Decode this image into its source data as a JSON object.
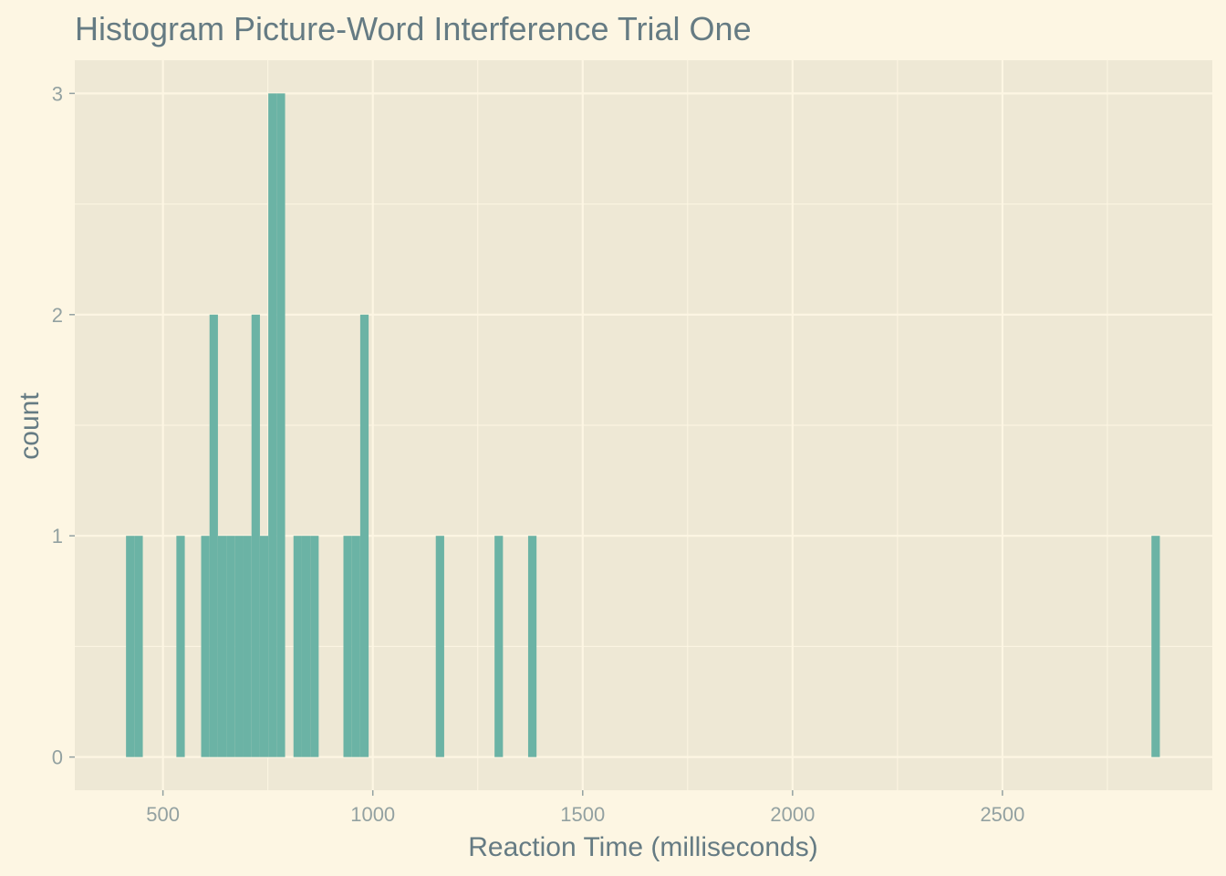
{
  "chart_data": {
    "type": "bar",
    "title": "Histogram Picture-Word Interference Trial One",
    "xlabel": "Reaction Time (milliseconds)",
    "ylabel": "count",
    "xlim": [
      290,
      3000
    ],
    "ylim": [
      -0.15,
      3.15
    ],
    "x_ticks": [
      500,
      1000,
      1500,
      2000,
      2500
    ],
    "x_tick_labels": [
      "500",
      "1000",
      "1500",
      "2000",
      "2500"
    ],
    "y_ticks": [
      0,
      1,
      2,
      3
    ],
    "y_tick_labels": [
      "0",
      "1",
      "2",
      "3"
    ],
    "grid": true,
    "bin_width": 20,
    "bins": [
      {
        "x0": 412,
        "x1": 432,
        "count": 1
      },
      {
        "x0": 432,
        "x1": 452,
        "count": 1
      },
      {
        "x0": 532,
        "x1": 552,
        "count": 1
      },
      {
        "x0": 591,
        "x1": 611,
        "count": 1
      },
      {
        "x0": 611,
        "x1": 631,
        "count": 2
      },
      {
        "x0": 631,
        "x1": 651,
        "count": 1
      },
      {
        "x0": 651,
        "x1": 671,
        "count": 1
      },
      {
        "x0": 671,
        "x1": 691,
        "count": 1
      },
      {
        "x0": 691,
        "x1": 711,
        "count": 1
      },
      {
        "x0": 711,
        "x1": 731,
        "count": 2
      },
      {
        "x0": 731,
        "x1": 751,
        "count": 1
      },
      {
        "x0": 751,
        "x1": 771,
        "count": 3
      },
      {
        "x0": 771,
        "x1": 791,
        "count": 3
      },
      {
        "x0": 811,
        "x1": 831,
        "count": 1
      },
      {
        "x0": 831,
        "x1": 851,
        "count": 1
      },
      {
        "x0": 851,
        "x1": 871,
        "count": 1
      },
      {
        "x0": 930,
        "x1": 950,
        "count": 1
      },
      {
        "x0": 950,
        "x1": 970,
        "count": 1
      },
      {
        "x0": 970,
        "x1": 990,
        "count": 2
      },
      {
        "x0": 1150,
        "x1": 1170,
        "count": 1
      },
      {
        "x0": 1290,
        "x1": 1310,
        "count": 1
      },
      {
        "x0": 1370,
        "x1": 1390,
        "count": 1
      },
      {
        "x0": 2855,
        "x1": 2875,
        "count": 1
      }
    ]
  },
  "colors": {
    "background": "#fdf6e3",
    "panel": "#eee8d5",
    "grid": "#fdf6e3",
    "bar": "#6bb3a5",
    "text": "#657b83",
    "tick_text": "#93a1a1"
  }
}
